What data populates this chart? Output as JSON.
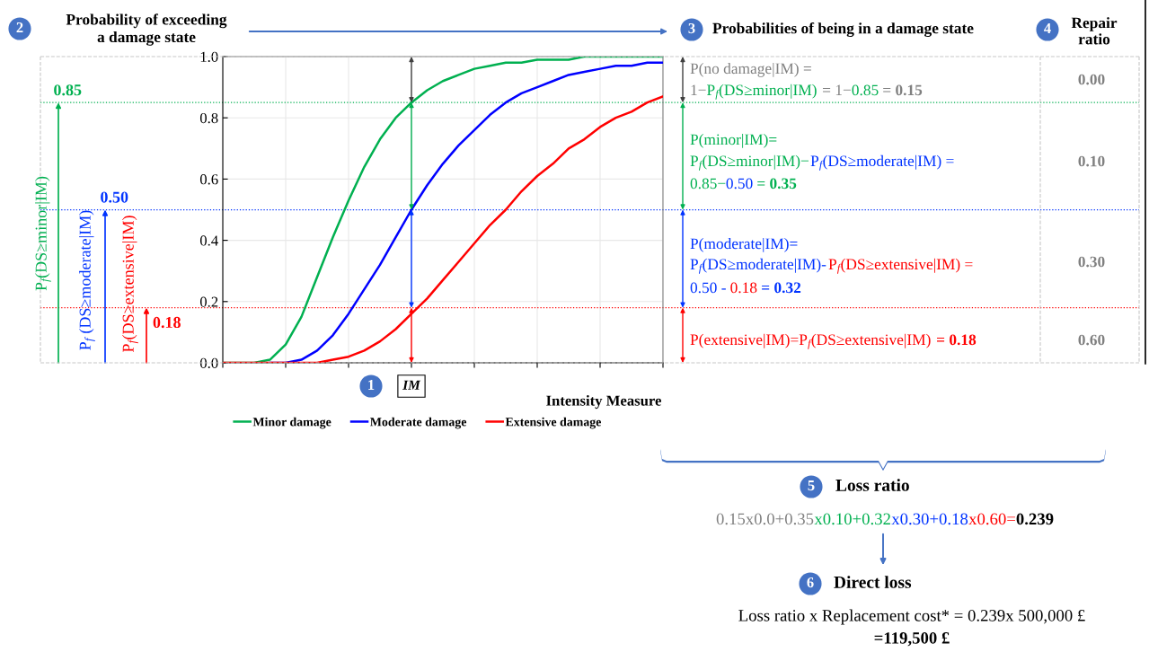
{
  "chart_data": {
    "type": "line",
    "xlabel": "Intensity Measure",
    "categories": [
      null,
      null,
      null,
      null,
      null,
      null,
      null,
      null,
      null,
      null,
      null,
      null,
      null,
      null,
      null,
      null,
      null,
      null,
      null,
      null,
      null,
      null,
      null,
      null,
      null,
      null,
      null,
      null,
      null
    ],
    "series": [
      {
        "name": "Minor damage",
        "color": "#00b050",
        "values": [
          0,
          0,
          0,
          0.01,
          0.06,
          0.15,
          0.28,
          0.41,
          0.53,
          0.64,
          0.73,
          0.8,
          0.85,
          0.89,
          0.92,
          0.94,
          0.96,
          0.97,
          0.98,
          0.98,
          0.99,
          0.99,
          0.99,
          1,
          1,
          1,
          1,
          1,
          1
        ]
      },
      {
        "name": "Moderate damage",
        "color": "#0000ff",
        "values": [
          null,
          null,
          null,
          0,
          0,
          0.01,
          0.04,
          0.09,
          0.16,
          0.24,
          0.32,
          0.41,
          0.5,
          0.58,
          0.65,
          0.71,
          0.76,
          0.81,
          0.85,
          0.88,
          0.9,
          0.92,
          0.94,
          0.95,
          0.96,
          0.97,
          0.97,
          0.98,
          0.98
        ]
      },
      {
        "name": "Extensive damage",
        "color": "#ff0000",
        "values": [
          0,
          0,
          0,
          0,
          0,
          0,
          0,
          0.01,
          0.02,
          0.04,
          0.07,
          0.11,
          0.16,
          0.21,
          0.27,
          0.33,
          0.39,
          0.45,
          0.5,
          0.56,
          0.61,
          0.65,
          0.7,
          0.73,
          0.77,
          0.8,
          0.82,
          0.85,
          0.87
        ]
      }
    ],
    "ylim": [
      0,
      1
    ],
    "yticks": [
      {
        "value": 0,
        "label": "0.0"
      },
      0.2,
      0.4,
      0.6,
      0.8,
      {
        "value": 1,
        "label": "1.0"
      }
    ],
    "grid": true,
    "legend": "bottom",
    "ref_lines": [
      {
        "axis": "y",
        "value": 0.85,
        "label": "0.85",
        "color": "#00b050",
        "line_style": "dotted"
      },
      {
        "axis": "y",
        "value": 0.5,
        "label": "0.50",
        "color": "#0033ff",
        "line_style": "dotted"
      },
      {
        "axis": "y",
        "value": 0.18,
        "label": "0.18",
        "color": "#ff0000",
        "line_style": "dotted"
      }
    ],
    "annotations": [
      "1",
      "IM",
      "2",
      "Probability of exceeding\na damage state",
      "3",
      "Probabilities of being in a damage state",
      "4",
      "Repair\nratio",
      "P$_{f}$(DS≥minor|IM)",
      "P$_{f}$ (DS≥moderate|IM)",
      "P$_{f}$(DS≥extensive|IM)",
      "P(no damage|IM) =",
      "1−",
      "P$_{f}$(DS≥minor|IM)",
      " = 1−",
      "0.85",
      " = ",
      "0.15",
      "P(minor|IM)=",
      "P$_{f}$(DS≥minor|IM)−",
      "P$_{f}$(DS≥moderate|IM) =",
      "0.85−",
      "0.50",
      " = ",
      "0.35",
      "P(moderate|IM)=",
      "P$_{f}$(DS≥moderate|IM)- ",
      "P$_{f}$(DS≥extensive|IM) =",
      "0.50 - ",
      "0.18",
      " = 0.32",
      "P(extensive|IM)=P$_{f}$(DS≥extensive|IM)",
      " = 0.18",
      "0.00",
      "0.10",
      "0.30",
      "0.60",
      "5",
      "Loss ratio",
      "0.15x0.0+0.35",
      "x0.10+0.32",
      "x0.30+0.18",
      "x0.60=",
      "0.239",
      "6",
      "Direct loss",
      "Loss ratio x Replacement cost* = 0.239x 500,000 £",
      "=119,500 £"
    ]
  }
}
